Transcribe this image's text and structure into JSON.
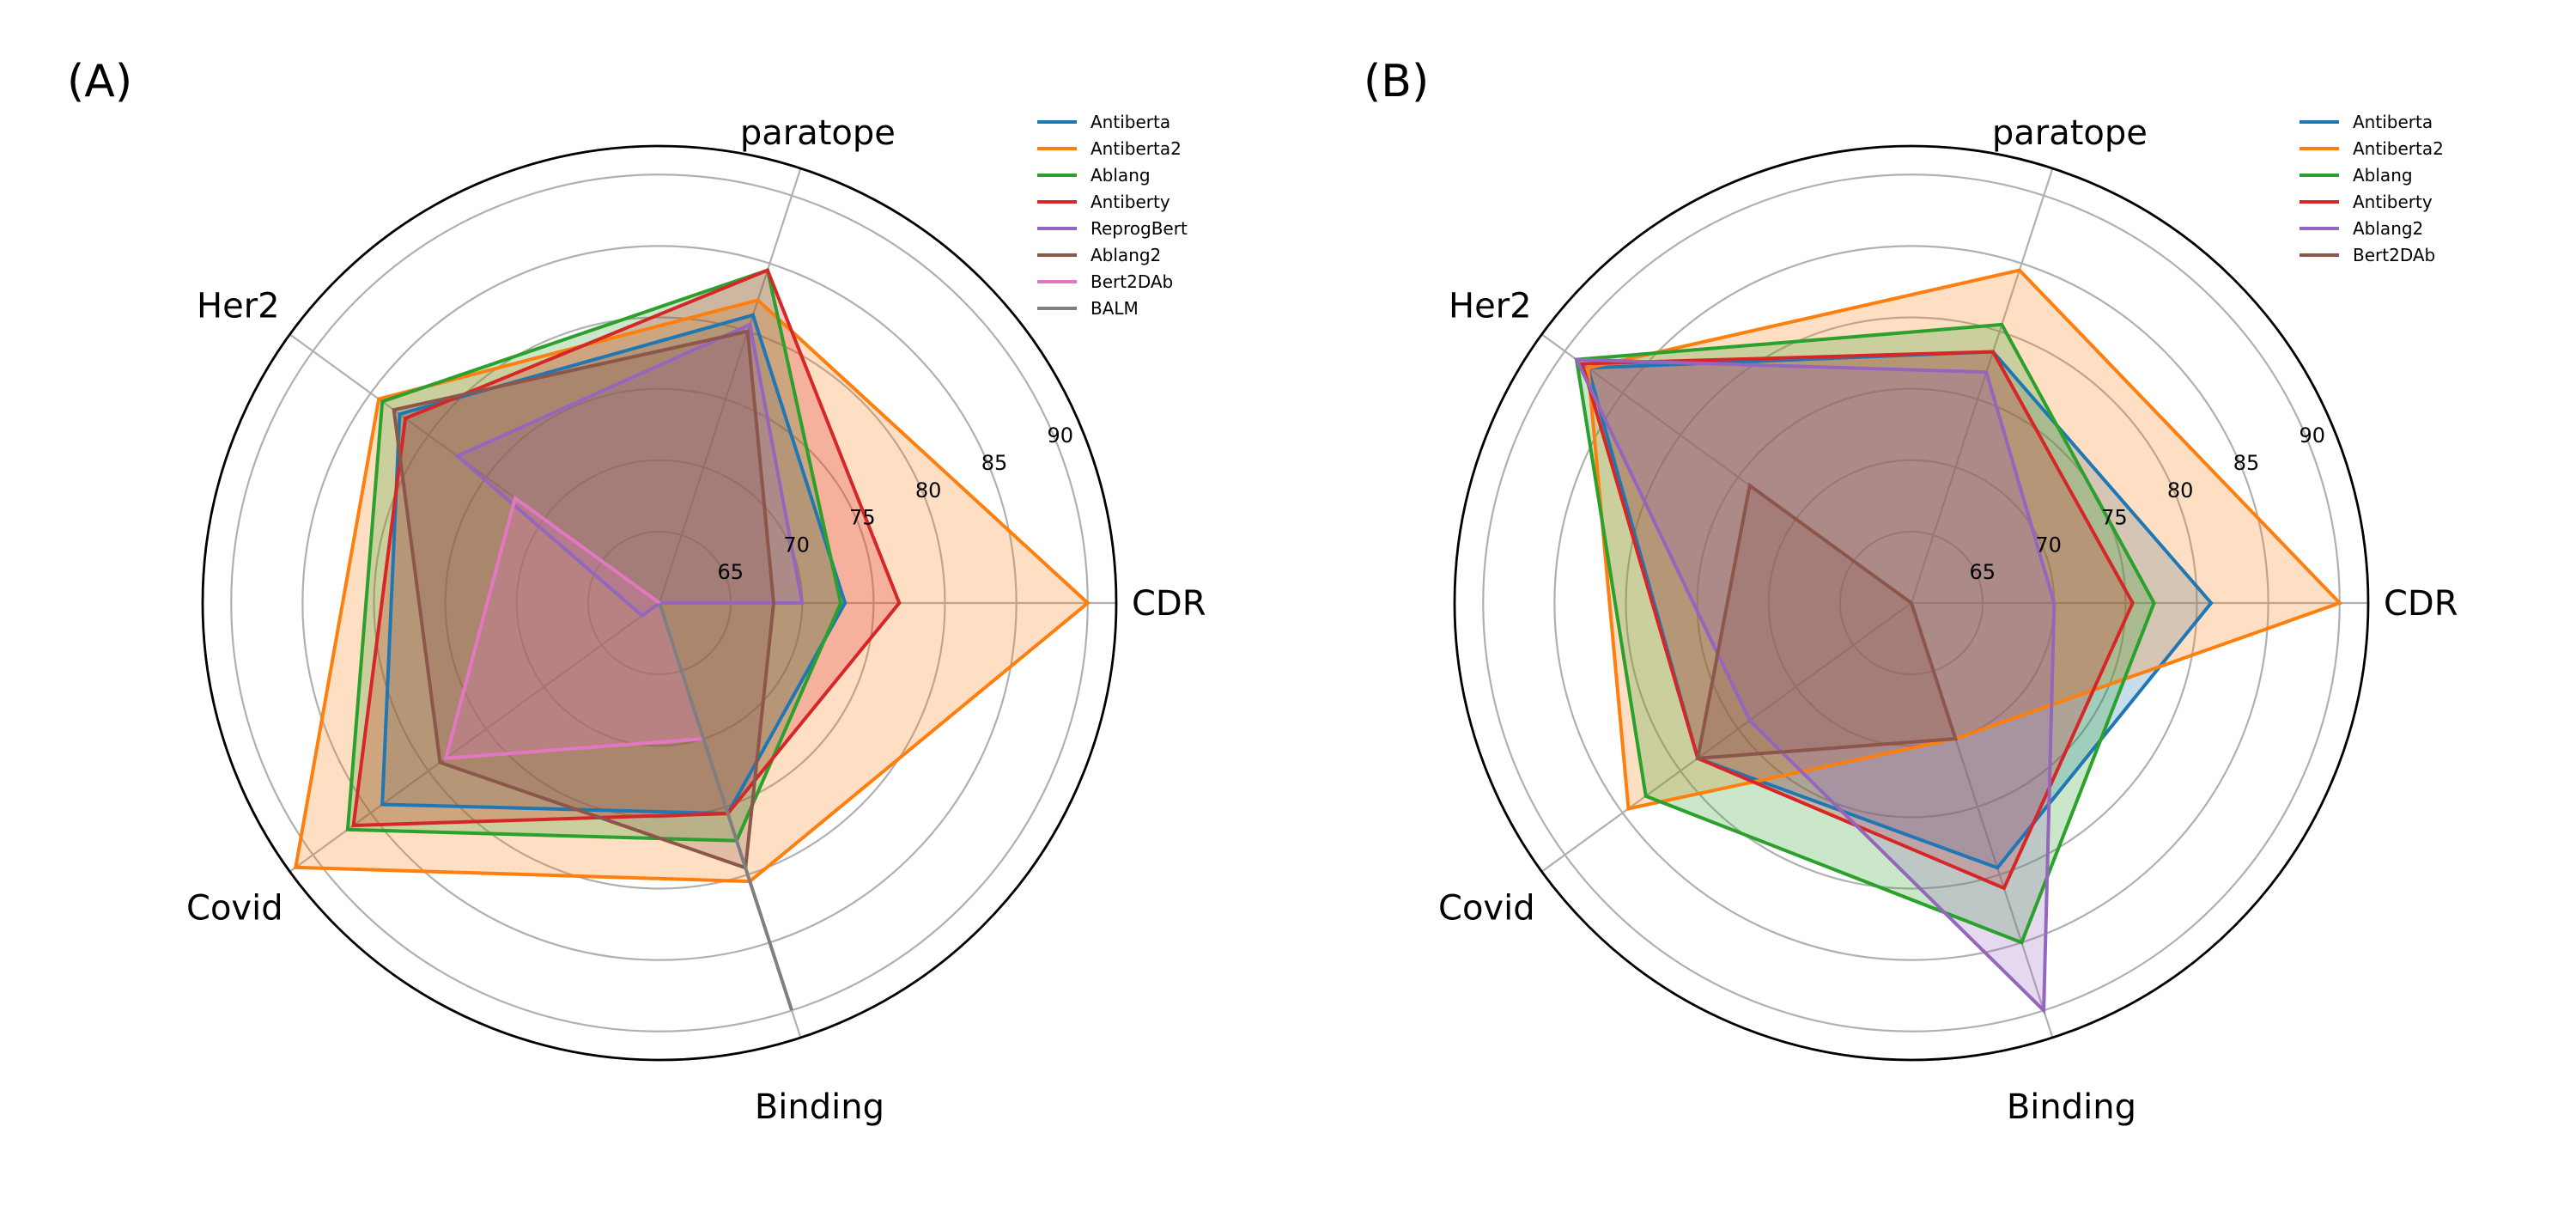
{
  "colors": {
    "Antiberta": "#1f77b4",
    "Antiberta2": "#ff7f0e",
    "Ablang": "#2ca02c",
    "Antiberty": "#d62728",
    "ReprogBert": "#9467bd",
    "Ablang2": "#8c564b",
    "Bert2DAb": "#e377c2",
    "BALM": "#7f7f7f",
    "Ablang2_B": "#9467bd",
    "Bert2DAb_B": "#8c564b"
  },
  "chart_data": [
    {
      "type": "radar",
      "panel_label": "(A)",
      "axes": [
        "CDR",
        "paratope",
        "Her2",
        "Covid",
        "Binding"
      ],
      "radial_ticks": [
        65,
        70,
        75,
        80,
        85,
        90
      ],
      "rlim": [
        60,
        92
      ],
      "grid": true,
      "legend": "top-right",
      "series": [
        {
          "name": "Antiberta",
          "values": [
            73.0,
            81.2,
            82.5,
            84.0,
            75.5
          ]
        },
        {
          "name": "Antiberta2",
          "values": [
            90.0,
            82.3,
            84.3,
            91.5,
            80.5
          ]
        },
        {
          "name": "Ablang",
          "values": [
            72.7,
            84.5,
            84.0,
            87.0,
            77.5
          ]
        },
        {
          "name": "Antiberty",
          "values": [
            76.8,
            84.5,
            82.0,
            86.5,
            75.5
          ]
        },
        {
          "name": "ReprogBert",
          "values": [
            70.0,
            80.5,
            77.5,
            61.5,
            60.0
          ]
        },
        {
          "name": "Ablang2",
          "values": [
            68.0,
            80.0,
            83.0,
            79.0,
            79.5
          ]
        },
        {
          "name": "Bert2DAb",
          "values": [
            60.0,
            60.0,
            72.5,
            78.5,
            70.0
          ]
        },
        {
          "name": "BALM",
          "values": [
            60.0,
            60.0,
            60.0,
            60.0,
            90.0
          ]
        }
      ]
    },
    {
      "type": "radar",
      "panel_label": "(B)",
      "axes": [
        "CDR",
        "paratope",
        "Her2",
        "Covid",
        "Binding"
      ],
      "radial_ticks": [
        65,
        70,
        75,
        80,
        85,
        90
      ],
      "rlim": [
        60,
        92
      ],
      "grid": true,
      "legend": "top-right",
      "series": [
        {
          "name": "Antiberta",
          "values": [
            81.0,
            78.5,
            88.0,
            78.5,
            79.5
          ]
        },
        {
          "name": "Antiberta2",
          "values": [
            90.0,
            84.5,
            88.0,
            84.5,
            70.0
          ]
        },
        {
          "name": "Ablang",
          "values": [
            77.0,
            80.5,
            89.0,
            83.0,
            85.0
          ]
        },
        {
          "name": "Antiberty",
          "values": [
            75.5,
            78.5,
            88.5,
            78.5,
            81.0
          ]
        },
        {
          "name": "Ablang2",
          "values": [
            70.0,
            77.0,
            89.0,
            74.0,
            90.0
          ]
        },
        {
          "name": "Bert2DAb",
          "values": [
            60.0,
            60.0,
            74.0,
            78.5,
            70.0
          ]
        }
      ]
    }
  ]
}
